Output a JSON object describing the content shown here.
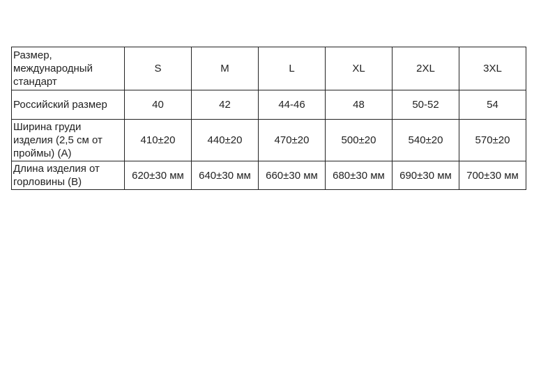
{
  "table": {
    "rows": [
      {
        "label": "Размер, международный стандарт",
        "values": [
          "S",
          "M",
          "L",
          "XL",
          "2XL",
          "3XL"
        ]
      },
      {
        "label": "Российский размер",
        "values": [
          "40",
          "42",
          "44-46",
          "48",
          "50-52",
          "54"
        ]
      },
      {
        "label": "Ширина груди изделия (2,5 см от проймы) (А)",
        "values": [
          "410±20",
          "440±20",
          "470±20",
          "500±20",
          "540±20",
          "570±20"
        ]
      },
      {
        "label": "Длина изделия от горловины (В)",
        "values": [
          "620±30 мм",
          "640±30 мм",
          "660±30 мм",
          "680±30 мм",
          "690±30 мм",
          "700±30 мм"
        ]
      }
    ]
  }
}
